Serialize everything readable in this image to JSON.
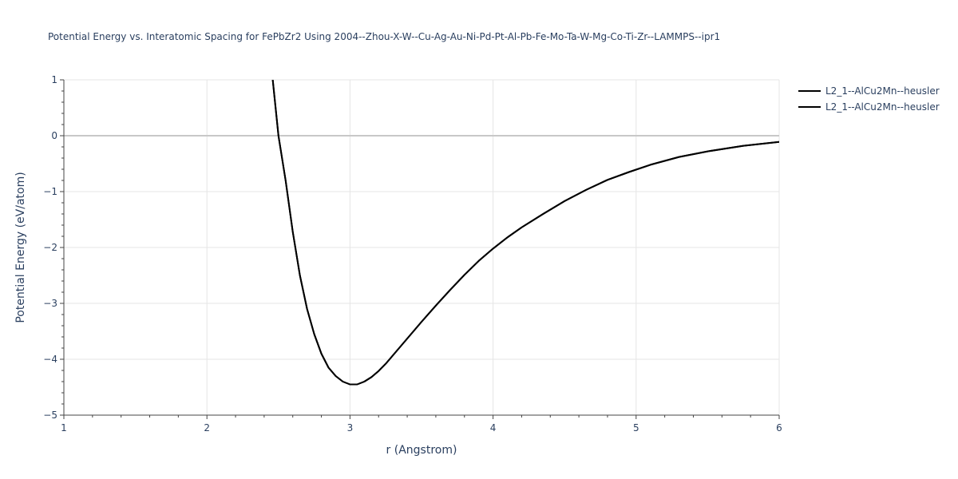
{
  "chart_data": {
    "type": "line",
    "title": "Potential Energy vs. Interatomic Spacing for FePbZr2 Using 2004--Zhou-X-W--Cu-Ag-Au-Ni-Pd-Pt-Al-Pb-Fe-Mo-Ta-W-Mg-Co-Ti-Zr--LAMMPS--ipr1",
    "xlabel": "r (Angstrom)",
    "ylabel": "Potential Energy (eV/atom)",
    "xlim": [
      1,
      6
    ],
    "ylim": [
      -5,
      1
    ],
    "xticks": [
      1,
      2,
      3,
      4,
      5,
      6
    ],
    "yticks": [
      1,
      0,
      -1,
      -2,
      -3,
      -4,
      -5
    ],
    "xtick_labels": [
      "1",
      "2",
      "3",
      "4",
      "5",
      "6"
    ],
    "ytick_labels": [
      "1",
      "0",
      "−1",
      "−2",
      "−3",
      "−4",
      "−5"
    ],
    "grid": true,
    "legend_position": "top-right",
    "series": [
      {
        "name": "L2_1--AlCu2Mn--heusler",
        "color": "#000000",
        "x": [
          2.46,
          2.5,
          2.55,
          2.6,
          2.65,
          2.7,
          2.75,
          2.8,
          2.85,
          2.9,
          2.95,
          3.0,
          3.05,
          3.1,
          3.15,
          3.2,
          3.25,
          3.3,
          3.4,
          3.5,
          3.6,
          3.7,
          3.8,
          3.9,
          4.0,
          4.1,
          4.2,
          4.35,
          4.5,
          4.65,
          4.8,
          4.95,
          5.1,
          5.3,
          5.5,
          5.75,
          6.0
        ],
        "y": [
          1.0,
          0.0,
          -0.8,
          -1.72,
          -2.5,
          -3.1,
          -3.55,
          -3.9,
          -4.15,
          -4.3,
          -4.4,
          -4.45,
          -4.45,
          -4.4,
          -4.32,
          -4.21,
          -4.08,
          -3.93,
          -3.63,
          -3.33,
          -3.04,
          -2.76,
          -2.49,
          -2.24,
          -2.02,
          -1.82,
          -1.64,
          -1.4,
          -1.17,
          -0.97,
          -0.79,
          -0.65,
          -0.52,
          -0.38,
          -0.28,
          -0.18,
          -0.11
        ]
      },
      {
        "name": "L2_1--AlCu2Mn--heusler",
        "color": "#000000",
        "x": [
          2.46,
          2.5,
          2.55,
          2.6,
          2.65,
          2.7,
          2.75,
          2.8,
          2.85,
          2.9,
          2.95,
          3.0,
          3.05,
          3.1,
          3.15,
          3.2,
          3.25,
          3.3,
          3.4,
          3.5,
          3.6,
          3.7,
          3.8,
          3.9,
          4.0,
          4.1,
          4.2,
          4.35,
          4.5,
          4.65,
          4.8,
          4.95,
          5.1,
          5.3,
          5.5,
          5.75,
          6.0
        ],
        "y": [
          1.0,
          0.0,
          -0.8,
          -1.72,
          -2.5,
          -3.1,
          -3.55,
          -3.9,
          -4.15,
          -4.3,
          -4.4,
          -4.45,
          -4.45,
          -4.4,
          -4.32,
          -4.21,
          -4.08,
          -3.93,
          -3.63,
          -3.33,
          -3.04,
          -2.76,
          -2.49,
          -2.24,
          -2.02,
          -1.82,
          -1.64,
          -1.4,
          -1.17,
          -0.97,
          -0.79,
          -0.65,
          -0.52,
          -0.38,
          -0.28,
          -0.18,
          -0.11
        ]
      }
    ]
  }
}
